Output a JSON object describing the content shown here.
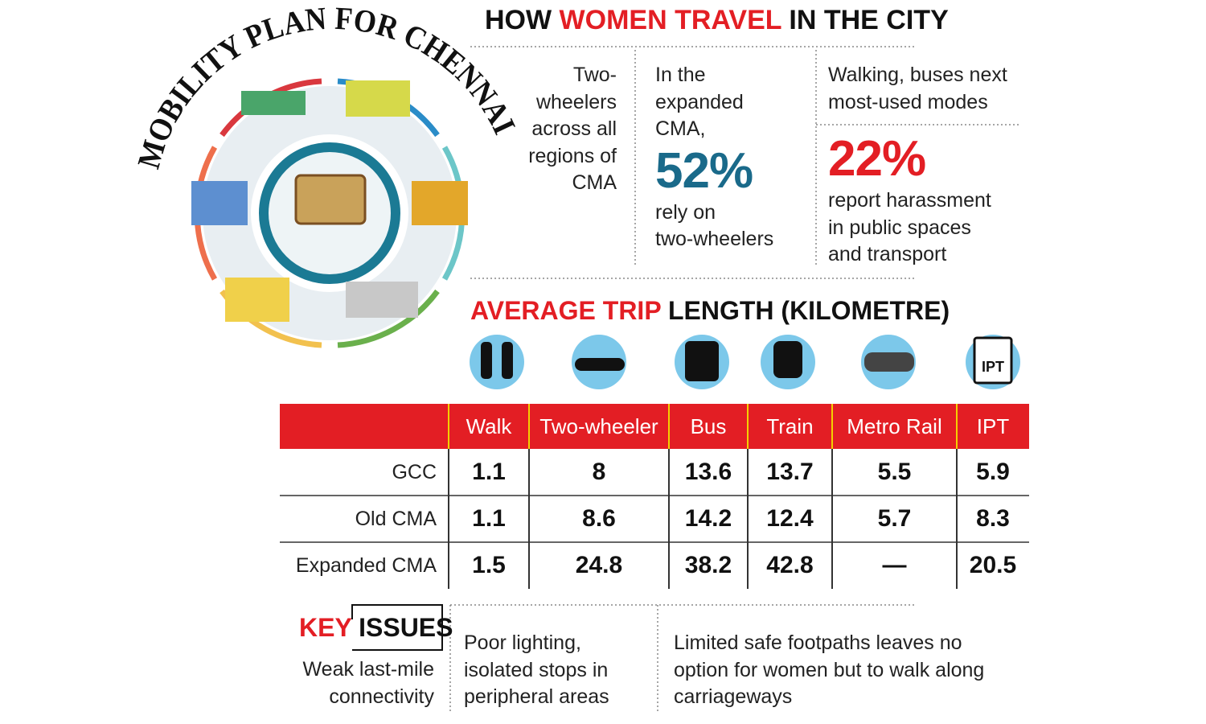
{
  "logo": {
    "title": "MOBILITY PLAN FOR CHENNAI"
  },
  "header": {
    "title_parts": [
      "HOW",
      "WOMEN TRAVEL",
      "IN THE CITY"
    ]
  },
  "stats": {
    "two_wheelers_all": {
      "lines": [
        "Two-",
        "wheelers",
        "across all",
        "regions of",
        "CMA"
      ]
    },
    "expanded_cma": {
      "lines_before": [
        "In the",
        "expanded",
        "CMA,"
      ],
      "figure": "52%",
      "lines_after": [
        "rely on",
        "two-wheelers"
      ]
    },
    "modes": {
      "lines": [
        "Walking, buses next",
        "most-used modes"
      ]
    },
    "harassment": {
      "figure": "22%",
      "lines": [
        "report harassment",
        "in public spaces",
        "and transport"
      ]
    }
  },
  "table": {
    "title_parts": [
      "AVERAGE TRIP",
      "LENGTH (KILOMETRE)"
    ],
    "icon_label": "IPT",
    "columns": [
      "Walk",
      "Two-wheeler",
      "Bus",
      "Train",
      "Metro Rail",
      "IPT"
    ],
    "rows": [
      {
        "label": "GCC",
        "values": [
          1.1,
          8,
          13.6,
          13.7,
          5.5,
          5.9
        ]
      },
      {
        "label": "Old CMA",
        "values": [
          1.1,
          8.6,
          14.2,
          12.4,
          5.7,
          8.3
        ]
      },
      {
        "label": "Expanded CMA",
        "values": [
          1.5,
          24.8,
          38.2,
          42.8,
          "—",
          20.5
        ]
      }
    ]
  },
  "key_issues": {
    "title_parts": [
      "KEY",
      "ISSUES"
    ],
    "items": [
      {
        "lines": [
          "Weak last-mile",
          "connectivity"
        ]
      },
      {
        "lines": [
          "Poor lighting,",
          "isolated stops in",
          "peripheral areas"
        ]
      },
      {
        "lines": [
          "Limited safe footpaths leaves no",
          "option for women but to walk along",
          "carriageways"
        ]
      }
    ]
  }
}
